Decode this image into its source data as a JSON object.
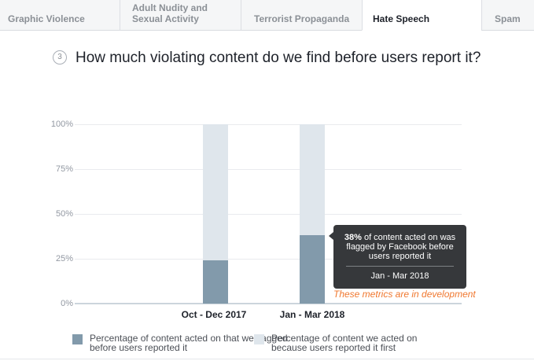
{
  "tabs": {
    "items": [
      {
        "label": "Graphic Violence",
        "active": false
      },
      {
        "label": "Adult Nudity and\nSexual Activity",
        "active": false
      },
      {
        "label": "Terrorist Propaganda",
        "active": false
      },
      {
        "label": "Hate Speech",
        "active": true
      },
      {
        "label": "Spam",
        "active": false
      }
    ]
  },
  "heading": {
    "number": "3",
    "title": "How much violating content do we find before users report it?"
  },
  "chart_data": {
    "type": "bar",
    "stacked": true,
    "title": "How much violating content do we find before users report it?",
    "categories": [
      "Oct - Dec 2017",
      "Jan - Mar 2018"
    ],
    "series": [
      {
        "name": "Percentage of content acted on that we flagged before users reported it",
        "values": [
          24,
          38
        ],
        "color": "#829aab"
      },
      {
        "name": "Percentage of content we acted on because users reported it first",
        "values": [
          76,
          62
        ],
        "color": "#dfe6ec"
      }
    ],
    "xlabel": "",
    "ylabel": "",
    "ylim": [
      0,
      100
    ],
    "yticks": [
      "0%",
      "25%",
      "50%",
      "75%",
      "100%"
    ],
    "grid": true,
    "legend_position": "bottom"
  },
  "axis": {
    "y_labels_top_to_bottom": [
      "100%",
      "75%",
      "50%",
      "25%",
      "0%"
    ],
    "x_labels": [
      "Oct - Dec 2017",
      "Jan - Mar 2018"
    ]
  },
  "tooltip": {
    "value": "38%",
    "rest": " of content acted on was flagged by Facebook before users reported it",
    "period": "Jan - Mar 2018"
  },
  "note": "These metrics are in development",
  "legend": {
    "items": [
      {
        "label": "Percentage of content acted on that we flagged\nbefore users reported it",
        "color": "#829aab"
      },
      {
        "label": "Percentage of content we acted on\nbecause users reported it first",
        "color": "#dfe6ec"
      }
    ]
  },
  "colors": {
    "flagged_bar": "#829aab",
    "reported_bar": "#dfe6ec",
    "tooltip_bg": "#36383b",
    "note_orange": "#f0772e",
    "tabbar_bg": "#f5f6f7"
  }
}
